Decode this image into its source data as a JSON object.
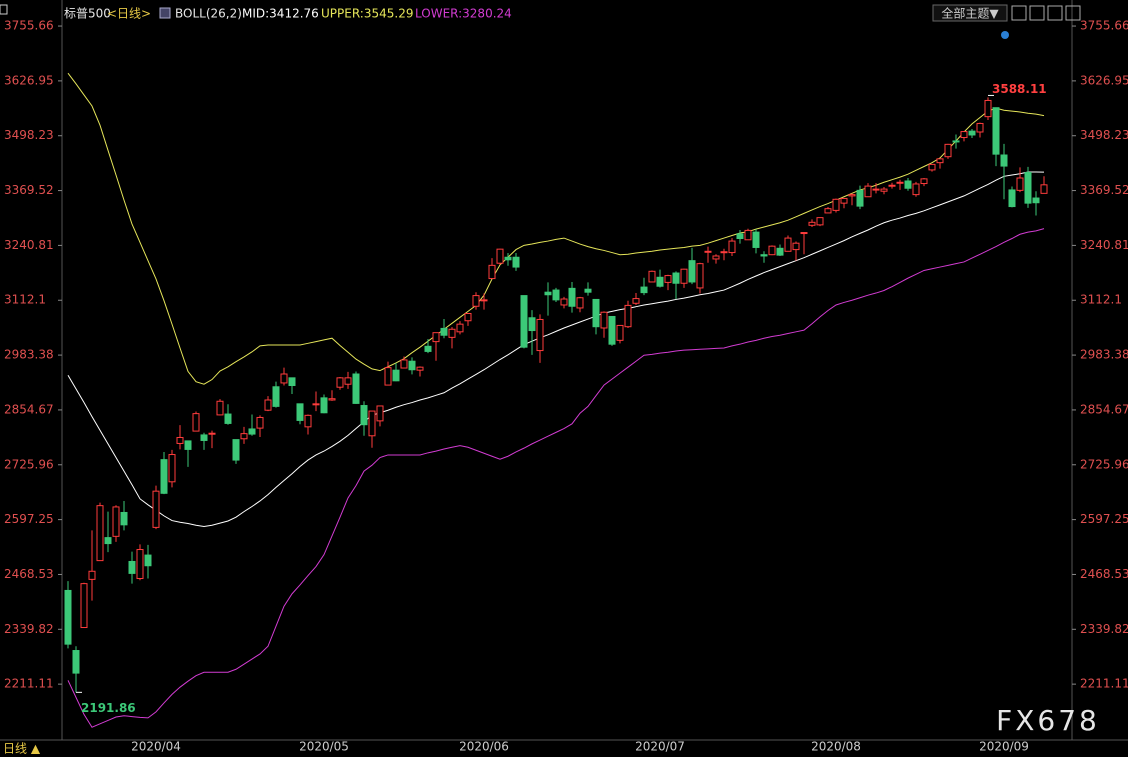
{
  "chart_data": {
    "type": "candlestick",
    "title": "标普500",
    "period": "<日线>",
    "indicator": "BOLL(26,2)",
    "theme_button": "全部主题▼",
    "bottom_label": "日线 ▲",
    "watermark": "FX678",
    "annotations": [
      "3588.11",
      "2191.86"
    ],
    "up_color": "#ff3c3c",
    "down_color": "#3cc878",
    "ylim": [
      2080,
      3798
    ],
    "yticks": [
      3755.66,
      3626.95,
      3498.23,
      3369.52,
      3240.81,
      3112.1,
      2983.38,
      2854.67,
      2725.96,
      2597.25,
      2468.53,
      2339.82,
      2211.11
    ],
    "categories": [
      null,
      null,
      null,
      null,
      null,
      null,
      null,
      null,
      "2020/04",
      null,
      null,
      null,
      null,
      null,
      null,
      null,
      null,
      null,
      null,
      null,
      null,
      null,
      null,
      null,
      null,
      null,
      null,
      null,
      null,
      "2020/05",
      null,
      null,
      null,
      null,
      null,
      null,
      null,
      null,
      null,
      null,
      null,
      null,
      null,
      null,
      null,
      null,
      null,
      null,
      null,
      "2020/06",
      null,
      null,
      null,
      null,
      null,
      null,
      null,
      null,
      null,
      null,
      null,
      null,
      null,
      null,
      null,
      null,
      null,
      null,
      null,
      null,
      null,
      "2020/07",
      null,
      null,
      null,
      null,
      null,
      null,
      null,
      null,
      null,
      null,
      null,
      null,
      null,
      null,
      null,
      null,
      null,
      null,
      null,
      null,
      null,
      "2020/08",
      null,
      null,
      null,
      null,
      null,
      null,
      null,
      null,
      null,
      null,
      null,
      null,
      null,
      null,
      null,
      null,
      null,
      null,
      null,
      null,
      "2020/09",
      null,
      null,
      null,
      null,
      null,
      null,
      null,
      null
    ],
    "open": [
      2431,
      2290,
      2344,
      2457,
      2501,
      2555,
      2558,
      2614,
      2499,
      2459,
      2514,
      2579,
      2738,
      2686,
      2776,
      2782,
      2805,
      2796,
      2799,
      2843,
      2845,
      2785,
      2787,
      2810,
      2812,
      2854,
      2909,
      2918,
      2930,
      2869,
      2815,
      2868,
      2883,
      2878,
      2908,
      2915,
      2939,
      2865,
      2794,
      2829,
      2913,
      2948,
      2953,
      2969,
      2948,
      3004,
      3015,
      3046,
      3025,
      3038,
      3064,
      3098,
      3112,
      3163,
      3199,
      3213,
      3213,
      3123,
      3071,
      2994,
      3131,
      3136,
      3101,
      3140,
      3094,
      3138,
      3114,
      3047,
      3074,
      3018,
      3050,
      3105,
      3143,
      3155,
      3166,
      3154,
      3176,
      3152,
      3205,
      3141,
      3225,
      3209,
      3225,
      3224,
      3268,
      3254,
      3272,
      3219,
      3219,
      3234,
      3227,
      3231,
      3270,
      3288,
      3289,
      3317,
      3323,
      3340,
      3357,
      3370,
      3355,
      3372,
      3368,
      3380,
      3387,
      3392,
      3360,
      3386,
      3418,
      3435,
      3449,
      3486,
      3494,
      3509,
      3507,
      3543,
      3564,
      3453,
      3371,
      3370,
      3412,
      3352,
      3363
    ],
    "high": [
      2453,
      2300,
      2449,
      2572,
      2637,
      2616,
      2631,
      2641,
      2522,
      2539,
      2538,
      2677,
      2756,
      2761,
      2819,
      2782,
      2851,
      2801,
      2806,
      2880,
      2868,
      2785,
      2815,
      2844,
      2842,
      2887,
      2921,
      2954,
      2930,
      2869,
      2844,
      2898,
      2891,
      2901,
      2932,
      2944,
      2945,
      2875,
      2852,
      2865,
      2968,
      2965,
      2980,
      2978,
      2957,
      3021,
      3036,
      3068,
      3049,
      3063,
      3081,
      3131,
      3128,
      3211,
      3233,
      3223,
      3223,
      3123,
      3089,
      3079,
      3154,
      3141,
      3120,
      3155,
      3120,
      3154,
      3115,
      3086,
      3074,
      3054,
      3111,
      3129,
      3165,
      3182,
      3184,
      3172,
      3180,
      3186,
      3235,
      3200,
      3238,
      3220,
      3233,
      3258,
      3277,
      3280,
      3279,
      3227,
      3241,
      3243,
      3264,
      3250,
      3272,
      3302,
      3306,
      3331,
      3351,
      3352,
      3363,
      3381,
      3387,
      3387,
      3378,
      3388,
      3395,
      3399,
      3390,
      3399,
      3432,
      3444,
      3479,
      3501,
      3509,
      3514,
      3529,
      3588.11,
      3564,
      3479,
      3379,
      3424,
      3425,
      3368,
      3403
    ],
    "low": [
      2295,
      2191.86,
      2344,
      2407,
      2500,
      2521,
      2545,
      2572,
      2447,
      2455,
      2459,
      2575,
      2657,
      2673,
      2762,
      2721,
      2805,
      2761,
      2765,
      2842,
      2820,
      2728,
      2775,
      2794,
      2791,
      2852,
      2860,
      2912,
      2892,
      2821,
      2797,
      2852,
      2847,
      2876,
      2902,
      2904,
      2869,
      2794,
      2766,
      2816,
      2913,
      2922,
      2953,
      2938,
      2933,
      2988,
      2970,
      3023,
      2999,
      3032,
      3052,
      3090,
      3090,
      3163,
      3196,
      3193,
      3181,
      2999,
      2984,
      2965,
      3076,
      3108,
      3093,
      3083,
      3084,
      3123,
      3032,
      3024,
      3005,
      3011,
      3047,
      3101,
      3124,
      3155,
      3142,
      3136,
      3115,
      3141,
      3150,
      3128,
      3200,
      3198,
      3206,
      3216,
      3245,
      3254,
      3222,
      3200,
      3218,
      3216,
      3227,
      3205,
      3220,
      3284,
      3286,
      3317,
      3318,
      3328,
      3335,
      3326,
      3355,
      3363,
      3361,
      3374,
      3371,
      3369,
      3355,
      3380,
      3414,
      3421,
      3444,
      3468,
      3485,
      3493,
      3494,
      3535,
      3427,
      3349,
      3330,
      3366,
      3329,
      3311,
      3363
    ],
    "close": [
      2305,
      2237,
      2447,
      2476,
      2630,
      2541,
      2627,
      2585,
      2471,
      2527,
      2489,
      2664,
      2659,
      2750,
      2790,
      2762,
      2846,
      2783,
      2800,
      2875,
      2823,
      2737,
      2799,
      2798,
      2837,
      2878,
      2863,
      2939,
      2912,
      2830,
      2842,
      2869,
      2848,
      2881,
      2930,
      2930,
      2870,
      2820,
      2852,
      2864,
      2954,
      2923,
      2972,
      2949,
      2955,
      2992,
      3036,
      3030,
      3044,
      3056,
      3081,
      3123,
      3113,
      3194,
      3232,
      3207,
      3190,
      3002,
      3041,
      3067,
      3125,
      3113,
      3115,
      3098,
      3118,
      3131,
      3050,
      3084,
      3009,
      3053,
      3100,
      3116,
      3130,
      3180,
      3145,
      3170,
      3152,
      3185,
      3155,
      3198,
      3227,
      3216,
      3226,
      3251,
      3257,
      3276,
      3236,
      3216,
      3239,
      3218,
      3258,
      3246,
      3271,
      3295,
      3306,
      3327,
      3349,
      3351,
      3360,
      3333,
      3380,
      3373,
      3373,
      3382,
      3389,
      3375,
      3385,
      3397,
      3431,
      3444,
      3478,
      3485,
      3508,
      3500,
      3527,
      3581,
      3455,
      3427,
      3332,
      3399,
      3340,
      3341,
      3383
    ],
    "series": [
      {
        "name": "MID:3412.76",
        "color": "#ffffff",
        "values": [
          2936,
          2904,
          2872,
          2839,
          2807,
          2775,
          2743,
          2711,
          2679,
          2646,
          2632,
          2619,
          2606,
          2595,
          2591,
          2588,
          2584,
          2581,
          2584,
          2589,
          2594,
          2603,
          2616,
          2628,
          2641,
          2656,
          2673,
          2689,
          2705,
          2722,
          2737,
          2749,
          2758,
          2769,
          2781,
          2795,
          2811,
          2827,
          2842,
          2848,
          2854,
          2861,
          2867,
          2872,
          2878,
          2883,
          2889,
          2895,
          2906,
          2916,
          2927,
          2938,
          2949,
          2961,
          2973,
          2984,
          2996,
          3008,
          3016,
          3024,
          3031,
          3039,
          3047,
          3054,
          3061,
          3068,
          3075,
          3082,
          3086,
          3090,
          3093,
          3097,
          3101,
          3104,
          3107,
          3110,
          3114,
          3117,
          3121,
          3125,
          3128,
          3132,
          3136,
          3144,
          3152,
          3161,
          3169,
          3177,
          3184,
          3191,
          3198,
          3205,
          3212,
          3220,
          3228,
          3236,
          3244,
          3252,
          3261,
          3269,
          3277,
          3286,
          3294,
          3300,
          3305,
          3311,
          3316,
          3322,
          3329,
          3336,
          3343,
          3350,
          3357,
          3366,
          3375,
          3384,
          3394,
          3403,
          3406,
          3409,
          3413,
          3413,
          3412.76
        ]
      },
      {
        "name": "UPPER:3545.29",
        "color": "#e6e65a",
        "values": [
          3645,
          3620,
          3594,
          3568,
          3523,
          3464,
          3406,
          3347,
          3291,
          3248,
          3205,
          3162,
          3111,
          3056,
          3000,
          2945,
          2921,
          2915,
          2926,
          2946,
          2956,
          2968,
          2979,
          2991,
          3005,
          3007,
          3007,
          3007,
          3007,
          3007,
          3011,
          3015,
          3019,
          3023,
          3006,
          2990,
          2974,
          2962,
          2951,
          2947,
          2956,
          2965,
          2975,
          2989,
          3002,
          3016,
          3030,
          3044,
          3058,
          3072,
          3086,
          3100,
          3124,
          3162,
          3195,
          3213,
          3231,
          3241,
          3244,
          3248,
          3251,
          3255,
          3258,
          3251,
          3244,
          3238,
          3233,
          3229,
          3224,
          3219,
          3220,
          3223,
          3225,
          3227,
          3230,
          3232,
          3234,
          3236,
          3239,
          3241,
          3246,
          3252,
          3258,
          3264,
          3270,
          3273,
          3279,
          3284,
          3289,
          3294,
          3300,
          3308,
          3316,
          3324,
          3332,
          3339,
          3347,
          3355,
          3363,
          3371,
          3376,
          3382,
          3389,
          3395,
          3401,
          3408,
          3417,
          3426,
          3435,
          3446,
          3466,
          3486,
          3507,
          3526,
          3541,
          3556,
          3563,
          3558,
          3556,
          3554,
          3551,
          3549,
          3545.29
        ]
      },
      {
        "name": "LOWER:3280.24",
        "color": "#d23cd2",
        "values": [
          2220,
          2180,
          2140,
          2110,
          2118,
          2126,
          2134,
          2137,
          2135,
          2133,
          2132,
          2146,
          2167,
          2187,
          2204,
          2218,
          2231,
          2239,
          2239,
          2239,
          2239,
          2246,
          2258,
          2270,
          2282,
          2300,
          2347,
          2394,
          2423,
          2444,
          2466,
          2487,
          2515,
          2559,
          2603,
          2648,
          2677,
          2711,
          2725,
          2743,
          2749,
          2749,
          2749,
          2749,
          2749,
          2754,
          2758,
          2763,
          2767,
          2771,
          2767,
          2760,
          2753,
          2746,
          2739,
          2746,
          2756,
          2765,
          2775,
          2784,
          2793,
          2802,
          2811,
          2822,
          2847,
          2863,
          2888,
          2913,
          2927,
          2941,
          2955,
          2969,
          2983,
          2985,
          2988,
          2990,
          2993,
          2995,
          2996,
          2997,
          2998,
          2999,
          3000,
          3005,
          3009,
          3014,
          3018,
          3023,
          3027,
          3030,
          3034,
          3038,
          3042,
          3057,
          3073,
          3088,
          3101,
          3107,
          3112,
          3118,
          3124,
          3129,
          3135,
          3144,
          3154,
          3164,
          3173,
          3182,
          3186,
          3190,
          3194,
          3198,
          3202,
          3211,
          3220,
          3229,
          3238,
          3248,
          3257,
          3267,
          3272,
          3275,
          3280.24
        ]
      }
    ]
  }
}
